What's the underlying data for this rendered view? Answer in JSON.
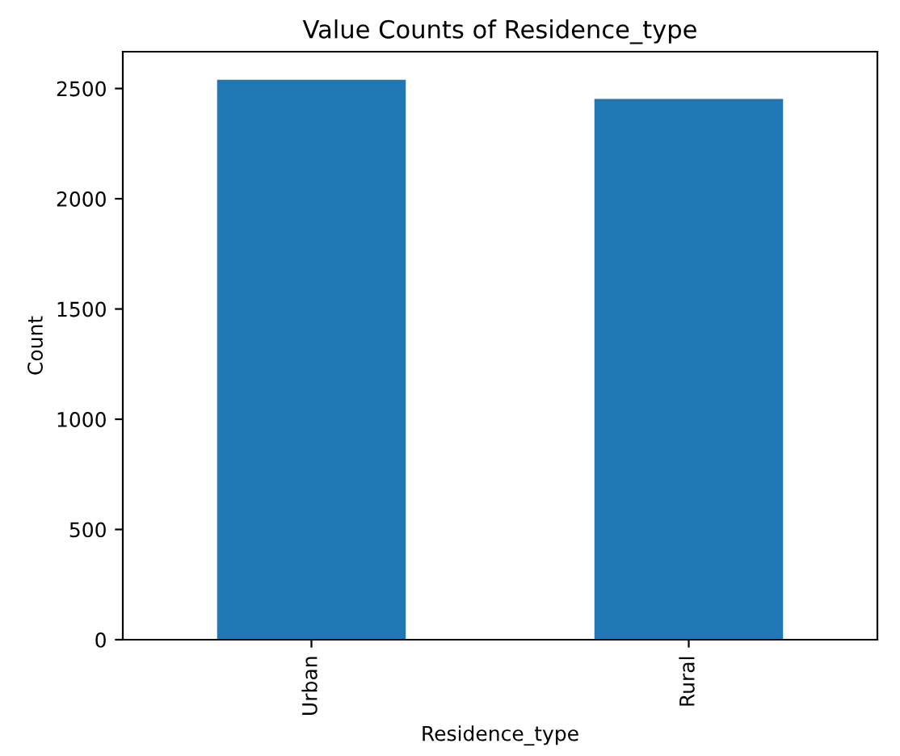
{
  "chart_data": {
    "type": "bar",
    "title": "Value Counts of Residence_type",
    "xlabel": "Residence_type",
    "ylabel": "Count",
    "categories": [
      "Urban",
      "Rural"
    ],
    "values": [
      2540,
      2453
    ],
    "color": "#1f77b4",
    "ylim": [
      0,
      2667
    ],
    "yticks": [
      0,
      500,
      1000,
      1500,
      2000,
      2500
    ],
    "grid": false,
    "legend": false
  }
}
